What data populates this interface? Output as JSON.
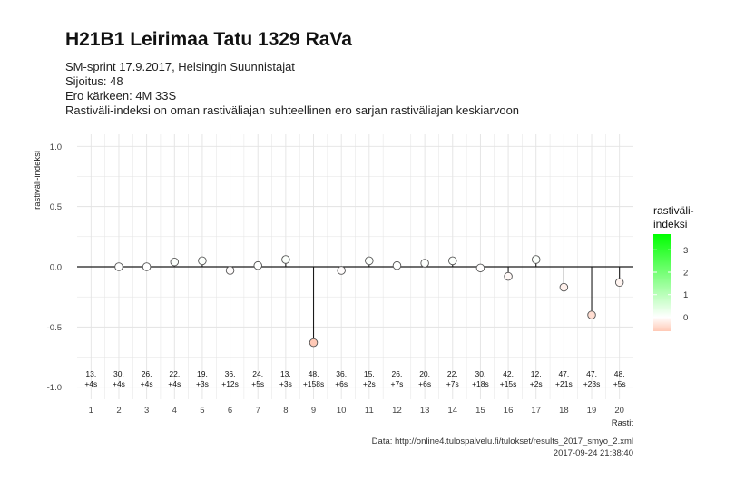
{
  "header": {
    "title": "H21B1 Leirimaa Tatu 1329 RaVa",
    "subtitle_lines": [
      "SM-sprint 17.9.2017, Helsingin Suunnistajat",
      "Sijoitus: 48",
      "Ero kärkeen: 4M 33S",
      "Rastiväli-indeksi on oman rastiväliajan suhteellinen ero sarjan rastiväliajan keskiarvoon"
    ]
  },
  "caption": {
    "source": "Data: http://online4.tulospalvelu.fi/tulokset/results_2017_smyo_2.xml",
    "timestamp": "2017-09-24 21:38:40"
  },
  "chart_data": {
    "type": "scatter",
    "xlabel": "Rastit",
    "ylabel": "rastiväli-indeksi",
    "ylim": [
      -1.0,
      1.0
    ],
    "yticks": [
      "1.0",
      "0.5",
      "0.0",
      "-0.5",
      "-1.0"
    ],
    "ytick_values": [
      1.0,
      0.5,
      0.0,
      -0.5,
      -1.0
    ],
    "x": [
      1,
      2,
      3,
      4,
      5,
      6,
      7,
      8,
      9,
      10,
      11,
      12,
      13,
      14,
      15,
      16,
      17,
      18,
      19,
      20
    ],
    "xtick_labels": [
      "1",
      "2",
      "3",
      "4",
      "5",
      "6",
      "7",
      "8",
      "9",
      "10",
      "11",
      "12",
      "13",
      "14",
      "15",
      "16",
      "17",
      "18",
      "19",
      "20"
    ],
    "values": [
      null,
      0.0,
      0.0,
      0.04,
      0.05,
      -0.03,
      0.01,
      0.06,
      -0.63,
      -0.03,
      0.05,
      0.01,
      0.03,
      0.05,
      -0.01,
      -0.08,
      0.06,
      -0.17,
      -0.4,
      -0.13
    ],
    "rank_labels": [
      "13.",
      "30.",
      "26.",
      "22.",
      "19.",
      "36.",
      "24.",
      "13.",
      "48.",
      "36.",
      "15.",
      "26.",
      "20.",
      "22.",
      "30.",
      "42.",
      "12.",
      "47.",
      "47.",
      "48."
    ],
    "diff_labels": [
      "+4s",
      "+4s",
      "+4s",
      "+4s",
      "+3s",
      "+12s",
      "+5s",
      "+3s",
      "+158s",
      "+6s",
      "+2s",
      "+7s",
      "+6s",
      "+7s",
      "+18s",
      "+15s",
      "+2s",
      "+21s",
      "+23s",
      "+5s"
    ],
    "legend": {
      "title_lines": [
        "rastiväli-",
        "indeksi"
      ],
      "tick_labels": [
        "3",
        "2",
        "1",
        "0"
      ],
      "tick_values": [
        3,
        2,
        1,
        0
      ],
      "range": [
        -0.63,
        3.7
      ],
      "position": "right"
    },
    "grid": true,
    "colors": {
      "negative": "#ffc9b6",
      "zero": "#ffffff",
      "positive": "#00ff00",
      "point_stroke": "#555555",
      "zero_line": "#1a1a1a",
      "grid": "#e3e3e3"
    }
  }
}
